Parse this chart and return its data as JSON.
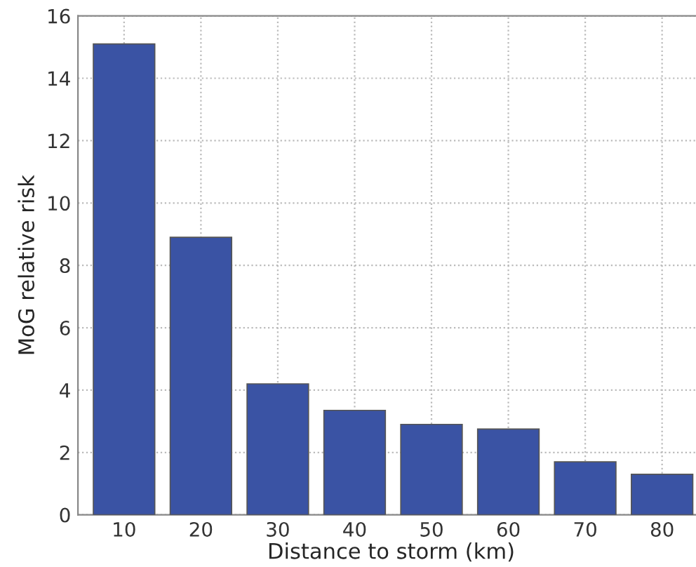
{
  "chart_data": {
    "type": "bar",
    "xlabel": "Distance to storm (km)",
    "ylabel": "MoG relative risk",
    "categories": [
      "10",
      "20",
      "30",
      "40",
      "50",
      "60",
      "70",
      "80"
    ],
    "values": [
      15.1,
      8.9,
      4.2,
      3.35,
      2.9,
      2.75,
      1.7,
      1.3
    ],
    "color": "#3a53a4",
    "ylim": [
      0,
      16
    ],
    "yticks": [
      0,
      2,
      4,
      6,
      8,
      10,
      12,
      14,
      16
    ],
    "grid": true
  }
}
